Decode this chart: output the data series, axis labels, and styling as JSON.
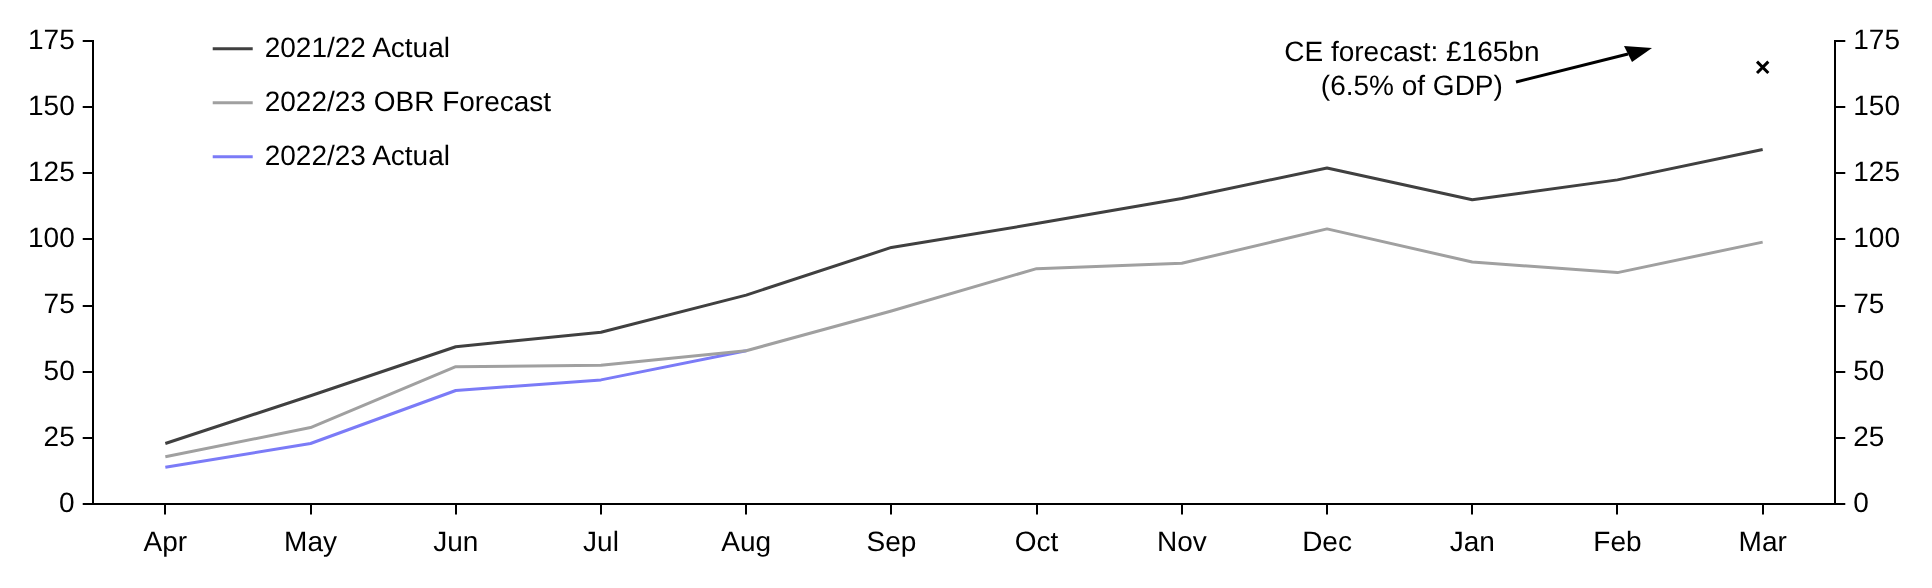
{
  "chart_data": {
    "type": "line",
    "categories": [
      "Apr",
      "May",
      "Jun",
      "Jul",
      "Aug",
      "Sep",
      "Oct",
      "Nov",
      "Dec",
      "Jan",
      "Feb",
      "Mar"
    ],
    "series": [
      {
        "name": "2021/22 Actual",
        "color": "#404040",
        "values": [
          23,
          41,
          59.5,
          65,
          79,
          97,
          106,
          115.5,
          127,
          115,
          122.5,
          134
        ]
      },
      {
        "name": "2022/23 OBR Forecast",
        "color": "#a0a0a0",
        "values": [
          18,
          29,
          52,
          52.5,
          58,
          73,
          89,
          91,
          104,
          91.5,
          87.5,
          99
        ]
      },
      {
        "name": "2022/23 Actual",
        "color": "#7b7bf7",
        "values": [
          14,
          23,
          43,
          47,
          58,
          null,
          null,
          null,
          null,
          null,
          null,
          null
        ]
      },
      {
        "type": "scatter",
        "color": "#000000",
        "marker": "cross",
        "values": [
          null,
          null,
          null,
          null,
          null,
          null,
          null,
          null,
          null,
          null,
          null,
          165
        ]
      }
    ],
    "ylim": [
      0,
      175
    ],
    "yticks": [
      0,
      25,
      50,
      75,
      100,
      125,
      150,
      175
    ],
    "y2lim": [
      0,
      175
    ],
    "y2ticks": [
      0,
      25,
      50,
      75,
      100,
      125,
      150,
      175
    ],
    "grid": false,
    "legend": "top left",
    "marker": "none",
    "line_style": "solid",
    "annotations": [
      "CE forecast: £165bn\n(6.5% of GDP)"
    ]
  }
}
